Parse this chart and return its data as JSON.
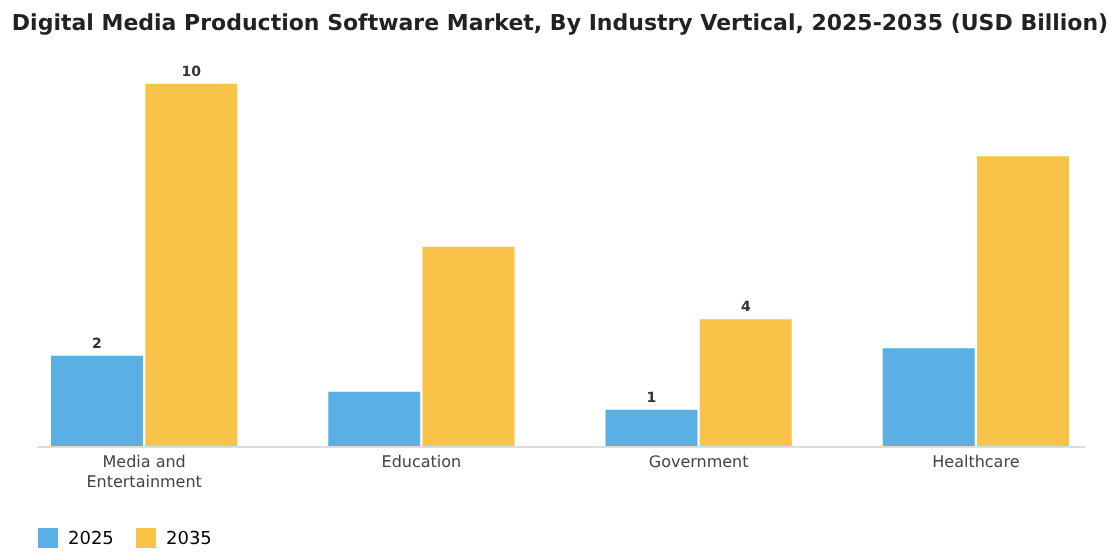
{
  "chart_data": {
    "type": "bar",
    "title": "Digital Media Production Software Market, By Industry Vertical, 2025-2035 (USD Billion)",
    "categories": [
      "Media and Entertainment",
      "Education",
      "Government",
      "Healthcare"
    ],
    "series": [
      {
        "name": "2025",
        "color": "#5ab0e5",
        "values": [
          2.49,
          1.5,
          1.0,
          2.7
        ],
        "value_labels": [
          "2",
          null,
          "1",
          null
        ]
      },
      {
        "name": "2035",
        "color": "#f9c34a",
        "values": [
          10,
          5.5,
          3.5,
          8.0
        ],
        "value_labels": [
          "10",
          null,
          "4",
          null
        ]
      }
    ],
    "legend": "bottom",
    "grid": false
  }
}
